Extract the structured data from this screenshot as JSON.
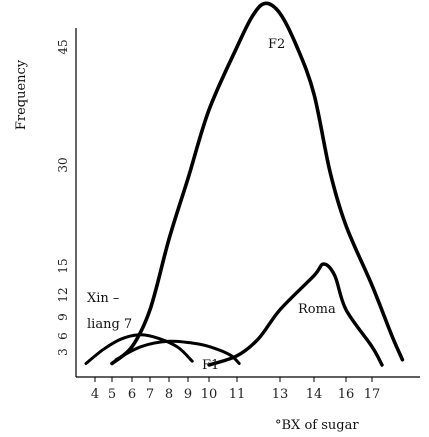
{
  "chart_data": {
    "type": "line",
    "xlabel": "°BX of sugar",
    "ylabel": "Frequency",
    "x_ticks": [
      4,
      5,
      6,
      7,
      8,
      9,
      10,
      11,
      13,
      14,
      16,
      17
    ],
    "y_ticks": [
      3,
      6,
      9,
      12,
      15,
      30,
      45
    ],
    "series": [
      {
        "name": "Xin-liang 7",
        "label_lines": [
          "Xin –",
          "liang 7"
        ],
        "x": [
          3.6,
          4.5,
          5.5,
          6.5,
          7.5,
          8.5,
          9.2
        ],
        "y": [
          1.5,
          3.5,
          5.5,
          6.2,
          5.5,
          3.8,
          1.8
        ]
      },
      {
        "name": "F1",
        "x": [
          5.2,
          6.5,
          8.0,
          9.5,
          10.3,
          10.8,
          11.1
        ],
        "y": [
          2.0,
          4.0,
          5.0,
          4.5,
          3.5,
          2.5,
          1.5
        ]
      },
      {
        "name": "Roma",
        "x": [
          10.0,
          11.0,
          12.0,
          13.0,
          14.0,
          14.6,
          15.3,
          16.0,
          17.0,
          17.5
        ],
        "y": [
          1.3,
          2.5,
          5.5,
          10.0,
          14.0,
          15.3,
          14.0,
          10.0,
          4.0,
          1.3
        ]
      },
      {
        "name": "F2",
        "x": [
          5.0,
          6.0,
          7.0,
          8.0,
          9.0,
          10.0,
          11.0,
          11.7,
          12.3,
          13.0,
          13.5,
          14.0,
          15.0,
          16.0,
          17.0,
          18.0,
          18.8
        ],
        "y": [
          1.5,
          4.0,
          10.0,
          19.0,
          28.0,
          37.0,
          45.0,
          49.5,
          51.5,
          50.0,
          45.0,
          39.0,
          29.0,
          21.0,
          13.0,
          6.0,
          2.0
        ]
      }
    ]
  }
}
